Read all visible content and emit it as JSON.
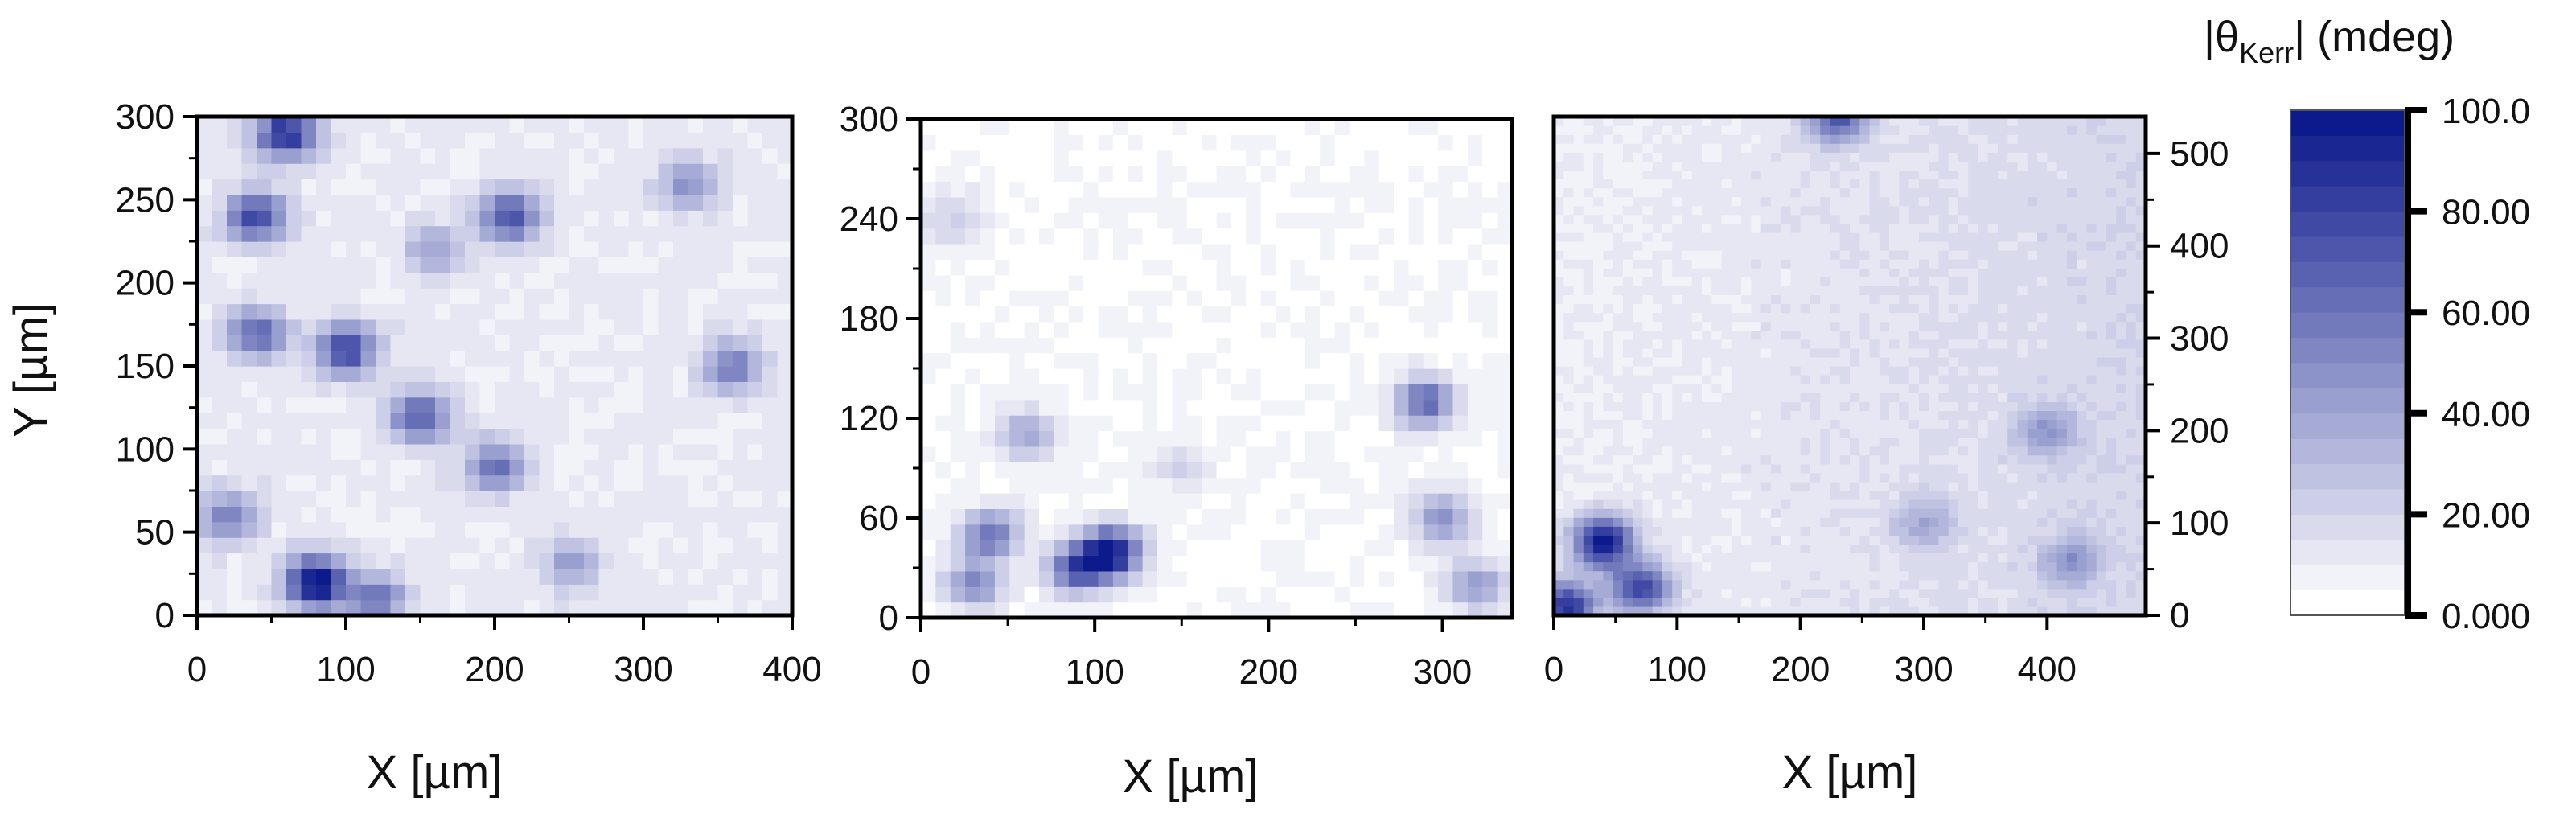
{
  "chart_data": [
    {
      "type": "heatmap",
      "xlabel": "X [µm]",
      "ylabel": "Y [µm]",
      "xlim": [
        0,
        400
      ],
      "ylim": [
        0,
        300
      ],
      "xticks": [
        0,
        100,
        200,
        300,
        400
      ],
      "yticks": [
        0,
        50,
        100,
        150,
        200,
        250,
        300
      ],
      "xtick_labels": [
        "0",
        "100",
        "200",
        "300",
        "400"
      ],
      "ytick_labels": [
        "0",
        "50",
        "100",
        "150",
        "200",
        "250",
        "300"
      ],
      "hotspots": [
        {
          "x": 80,
          "y": 20,
          "v": 95
        },
        {
          "x": 60,
          "y": 290,
          "v": 80
        },
        {
          "x": 40,
          "y": 240,
          "v": 70
        },
        {
          "x": 210,
          "y": 240,
          "v": 65
        },
        {
          "x": 100,
          "y": 160,
          "v": 70
        },
        {
          "x": 150,
          "y": 120,
          "v": 60
        },
        {
          "x": 200,
          "y": 90,
          "v": 50
        },
        {
          "x": 40,
          "y": 170,
          "v": 55
        },
        {
          "x": 120,
          "y": 10,
          "v": 50
        },
        {
          "x": 360,
          "y": 150,
          "v": 45
        },
        {
          "x": 20,
          "y": 60,
          "v": 45
        },
        {
          "x": 330,
          "y": 260,
          "v": 35
        },
        {
          "x": 160,
          "y": 220,
          "v": 30
        },
        {
          "x": 250,
          "y": 30,
          "v": 30
        }
      ]
    },
    {
      "type": "heatmap",
      "xlabel": "X [µm]",
      "ylabel": "",
      "xlim": [
        0,
        340
      ],
      "ylim": [
        0,
        300
      ],
      "xticks": [
        0,
        100,
        200,
        300
      ],
      "yticks": [
        0,
        60,
        120,
        180,
        240,
        300
      ],
      "xtick_labels": [
        "0",
        "100",
        "200",
        "300"
      ],
      "ytick_labels": [
        "0",
        "60",
        "120",
        "180",
        "240",
        "300"
      ],
      "hotspots": [
        {
          "x": 110,
          "y": 40,
          "v": 90
        },
        {
          "x": 90,
          "y": 30,
          "v": 70
        },
        {
          "x": 40,
          "y": 50,
          "v": 55
        },
        {
          "x": 30,
          "y": 20,
          "v": 45
        },
        {
          "x": 290,
          "y": 130,
          "v": 60
        },
        {
          "x": 300,
          "y": 60,
          "v": 45
        },
        {
          "x": 320,
          "y": 20,
          "v": 40
        },
        {
          "x": 60,
          "y": 110,
          "v": 35
        },
        {
          "x": 20,
          "y": 240,
          "v": 20
        },
        {
          "x": 150,
          "y": 90,
          "v": 15
        }
      ]
    },
    {
      "type": "heatmap",
      "xlabel": "X [µm]",
      "ylabel": "",
      "xlim": [
        0,
        480
      ],
      "ylim": [
        0,
        540
      ],
      "xticks": [
        0,
        100,
        200,
        300,
        400
      ],
      "yticks": [
        0,
        100,
        200,
        300,
        400,
        500
      ],
      "xtick_labels": [
        "0",
        "100",
        "200",
        "300",
        "400"
      ],
      "ytick_labels": [
        "0",
        "100",
        "200",
        "300",
        "400",
        "500"
      ],
      "hotspots": [
        {
          "x": 40,
          "y": 80,
          "v": 90
        },
        {
          "x": 10,
          "y": 10,
          "v": 80
        },
        {
          "x": 70,
          "y": 30,
          "v": 70
        },
        {
          "x": 400,
          "y": 200,
          "v": 30
        },
        {
          "x": 420,
          "y": 60,
          "v": 30
        },
        {
          "x": 230,
          "y": 540,
          "v": 60
        },
        {
          "x": 300,
          "y": 100,
          "v": 25
        }
      ]
    }
  ],
  "colorbar": {
    "title": "|θKerr| (mdeg)",
    "title_main": "|θ",
    "title_sub": "Kerr",
    "title_rest": "| (mdeg)",
    "range": [
      0,
      100
    ],
    "levels": 20,
    "min_color": "#ffffff",
    "max_color": "#0d1a8c",
    "tick_values": [
      0,
      20,
      40,
      60,
      80,
      100
    ],
    "tick_labels": [
      "0.000",
      "20.00",
      "40.00",
      "60.00",
      "80.00",
      "100.0"
    ]
  }
}
